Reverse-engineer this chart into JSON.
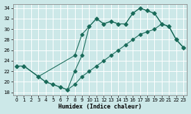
{
  "xlabel": "Humidex (Indice chaleur)",
  "bg_color": "#cce8e8",
  "grid_color": "#b8d8d8",
  "line_color": "#1a6b5a",
  "xlim": [
    -0.5,
    23.5
  ],
  "ylim": [
    17.5,
    34.8
  ],
  "xticks": [
    0,
    1,
    2,
    3,
    4,
    5,
    6,
    7,
    8,
    9,
    10,
    11,
    12,
    13,
    14,
    15,
    16,
    17,
    18,
    19,
    20,
    21,
    22,
    23
  ],
  "yticks": [
    18,
    20,
    22,
    24,
    26,
    28,
    30,
    32,
    34
  ],
  "line1_x": [
    0,
    1,
    3,
    8,
    9,
    10,
    11,
    12,
    13,
    14,
    15,
    16,
    17,
    18,
    19,
    20,
    21,
    22,
    23
  ],
  "line1_y": [
    23,
    23,
    21,
    25,
    29,
    30.5,
    32,
    31,
    31.5,
    31,
    31,
    33,
    34,
    33.5,
    33,
    31,
    30.5,
    28,
    26.5
  ],
  "line2_x": [
    0,
    1,
    3,
    4,
    5,
    6,
    7,
    8,
    9,
    10,
    11,
    12,
    13,
    14,
    15,
    16,
    17,
    18,
    19,
    20,
    21,
    22,
    23
  ],
  "line2_y": [
    23,
    23,
    21,
    20,
    19.5,
    19,
    18.5,
    19.5,
    21,
    22,
    23,
    24,
    25,
    26,
    27,
    28,
    29,
    29.5,
    30,
    31,
    30.5,
    28,
    26.5
  ],
  "line3_x": [
    0,
    1,
    3,
    4,
    5,
    6,
    7,
    8,
    9,
    10,
    11,
    12,
    13,
    14,
    15,
    16,
    17,
    18,
    19,
    20,
    21,
    22,
    23
  ],
  "line3_y": [
    23,
    23,
    21,
    20,
    19.5,
    19,
    18.5,
    22,
    25,
    30.5,
    32,
    31,
    31.5,
    31,
    31,
    33,
    34,
    33.5,
    33,
    31,
    30.5,
    28,
    26.5
  ]
}
